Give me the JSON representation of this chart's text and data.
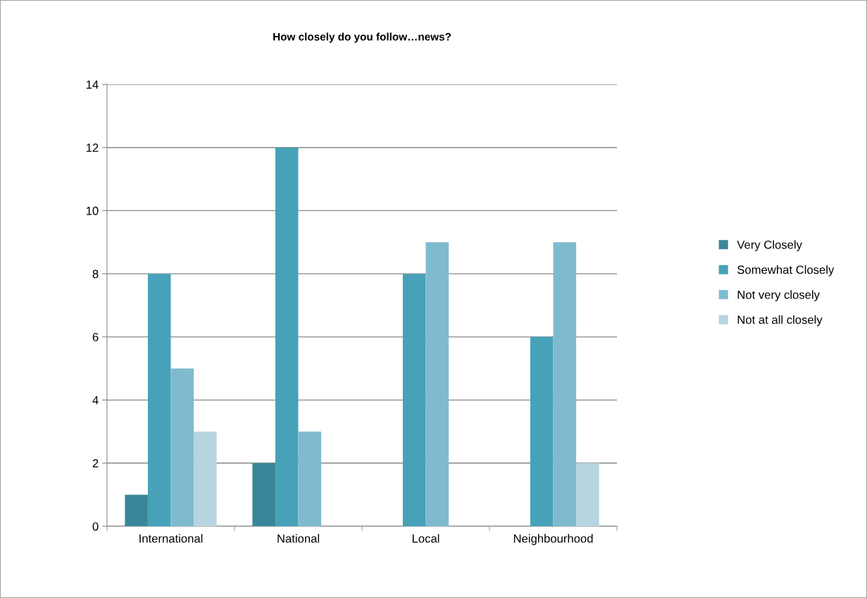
{
  "chart_data": {
    "type": "bar",
    "title": "How closely do you follow…news?",
    "categories": [
      "International",
      "National",
      "Local",
      "Neighbourhood"
    ],
    "series": [
      {
        "name": "Very Closely",
        "color": "#3a8699",
        "values": [
          1,
          2,
          null,
          null
        ]
      },
      {
        "name": "Somewhat Closely",
        "color": "#47a1b9",
        "values": [
          8,
          12,
          8,
          6
        ]
      },
      {
        "name": "Not very closely",
        "color": "#7fbbcf",
        "values": [
          5,
          3,
          9,
          9
        ]
      },
      {
        "name": "Not at all closely",
        "color": "#b7d5e0",
        "values": [
          3,
          null,
          null,
          2
        ]
      }
    ],
    "ylim": [
      0,
      14
    ],
    "yticks": [
      0,
      2,
      4,
      6,
      8,
      10,
      12,
      14
    ],
    "grid": "y",
    "legend": "right"
  }
}
